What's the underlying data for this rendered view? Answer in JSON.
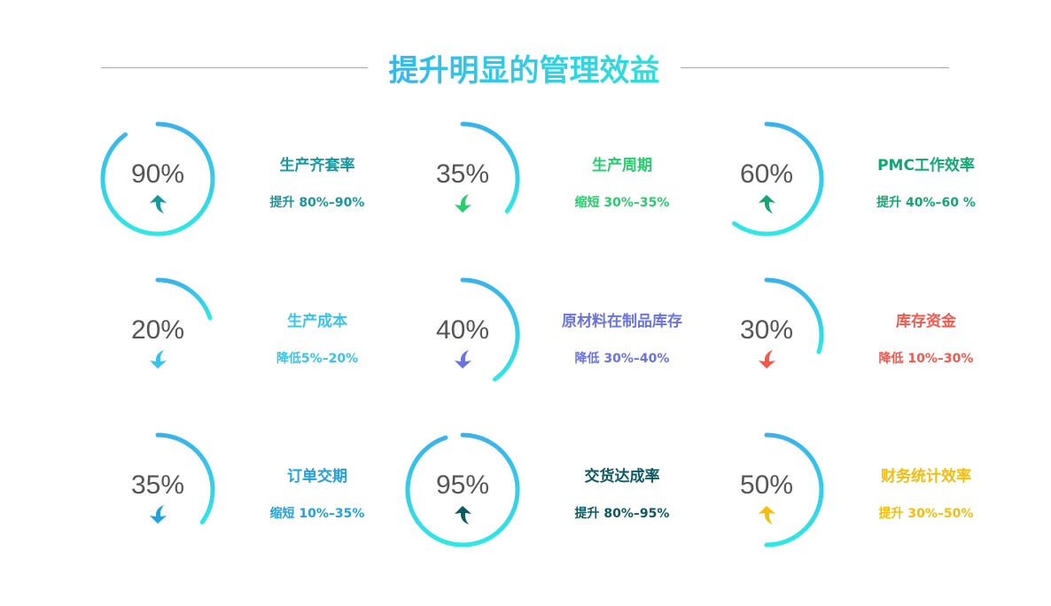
{
  "title": "提升明显的管理效益",
  "ring_gradient": [
    "#3ab2ea",
    "#2ee8e4"
  ],
  "items": [
    {
      "value": "90%",
      "percent": 90,
      "title": "生产齐套率",
      "desc": "提升 80%–90%",
      "color": "#16989e",
      "direction": "up"
    },
    {
      "value": "35%",
      "percent": 35,
      "title": "生产周期",
      "desc": "缩短 30%–35%",
      "color": "#27cc6c",
      "direction": "down"
    },
    {
      "value": "60%",
      "percent": 60,
      "title": "PMC工作效率",
      "desc": "提升 40%–60 %",
      "color": "#10a870",
      "direction": "up"
    },
    {
      "value": "20%",
      "percent": 20,
      "title": "生产成本",
      "desc": "降低5%–20%",
      "color": "#38c4ea",
      "direction": "down"
    },
    {
      "value": "40%",
      "percent": 40,
      "title": "原材料在制品库存",
      "desc": "降低 30%–40%",
      "color": "#6a73e2",
      "direction": "down"
    },
    {
      "value": "30%",
      "percent": 30,
      "title": "库存资金",
      "desc": "降低 10%–30%",
      "color": "#f4574b",
      "direction": "down"
    },
    {
      "value": "35%",
      "percent": 35,
      "title": "订单交期",
      "desc": "缩短 10%–35%",
      "color": "#22a2dc",
      "direction": "down"
    },
    {
      "value": "95%",
      "percent": 95,
      "title": "交货达成率",
      "desc": "提升 80%–95%",
      "color": "#0d5961",
      "direction": "up"
    },
    {
      "value": "50%",
      "percent": 50,
      "title": "财务统计效率",
      "desc": "提升 30%–50%",
      "color": "#f5bc0a",
      "direction": "up"
    }
  ]
}
